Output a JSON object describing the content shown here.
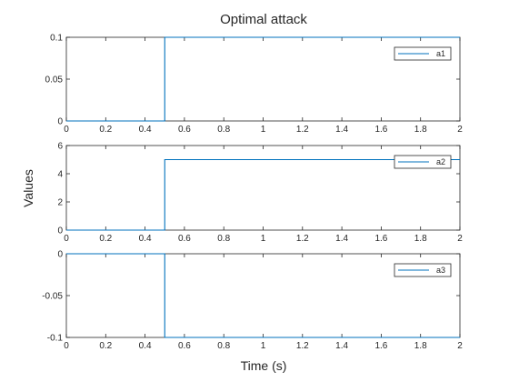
{
  "chart_data": {
    "type": "line",
    "title": "Optimal attack",
    "xlabel": "Time (s)",
    "ylabel": "Values",
    "color": "#0072BD",
    "grid": false,
    "legend_position": "top-right",
    "subplots": [
      {
        "series": [
          {
            "name": "a1",
            "x": [
              0,
              0.5,
              0.5,
              2
            ],
            "y": [
              0,
              0,
              0.1,
              0.1
            ]
          }
        ],
        "xlim": [
          0,
          2
        ],
        "ylim": [
          0,
          0.1
        ],
        "xticks": [
          0,
          0.2,
          0.4,
          0.6,
          0.8,
          1,
          1.2,
          1.4,
          1.6,
          1.8,
          2
        ],
        "xtick_labels": [
          "0",
          "0.2",
          "0.4",
          "0.6",
          "0.8",
          "1",
          "1.2",
          "1.4",
          "1.6",
          "1.8",
          "2"
        ],
        "yticks": [
          0,
          0.05,
          0.1
        ],
        "ytick_labels": [
          "0",
          "0.05",
          "0.1"
        ]
      },
      {
        "series": [
          {
            "name": "a2",
            "x": [
              0,
              0.5,
              0.5,
              2
            ],
            "y": [
              0,
              0,
              5,
              5
            ]
          }
        ],
        "xlim": [
          0,
          2
        ],
        "ylim": [
          0,
          6
        ],
        "xticks": [
          0,
          0.2,
          0.4,
          0.6,
          0.8,
          1,
          1.2,
          1.4,
          1.6,
          1.8,
          2
        ],
        "xtick_labels": [
          "0",
          "0.2",
          "0.4",
          "0.6",
          "0.8",
          "1",
          "1.2",
          "1.4",
          "1.6",
          "1.8",
          "2"
        ],
        "yticks": [
          0,
          2,
          4,
          6
        ],
        "ytick_labels": [
          "0",
          "2",
          "4",
          "6"
        ]
      },
      {
        "series": [
          {
            "name": "a3",
            "x": [
              0,
              0.5,
              0.5,
              2
            ],
            "y": [
              0,
              0,
              -0.1,
              -0.1
            ]
          }
        ],
        "xlim": [
          0,
          2
        ],
        "ylim": [
          -0.1,
          0
        ],
        "xticks": [
          0,
          0.2,
          0.4,
          0.6,
          0.8,
          1,
          1.2,
          1.4,
          1.6,
          1.8,
          2
        ],
        "xtick_labels": [
          "0",
          "0.2",
          "0.4",
          "0.6",
          "0.8",
          "1",
          "1.2",
          "1.4",
          "1.6",
          "1.8",
          "2"
        ],
        "yticks": [
          -0.1,
          -0.05,
          0
        ],
        "ytick_labels": [
          "-0.1",
          "-0.05",
          "0"
        ]
      }
    ]
  }
}
